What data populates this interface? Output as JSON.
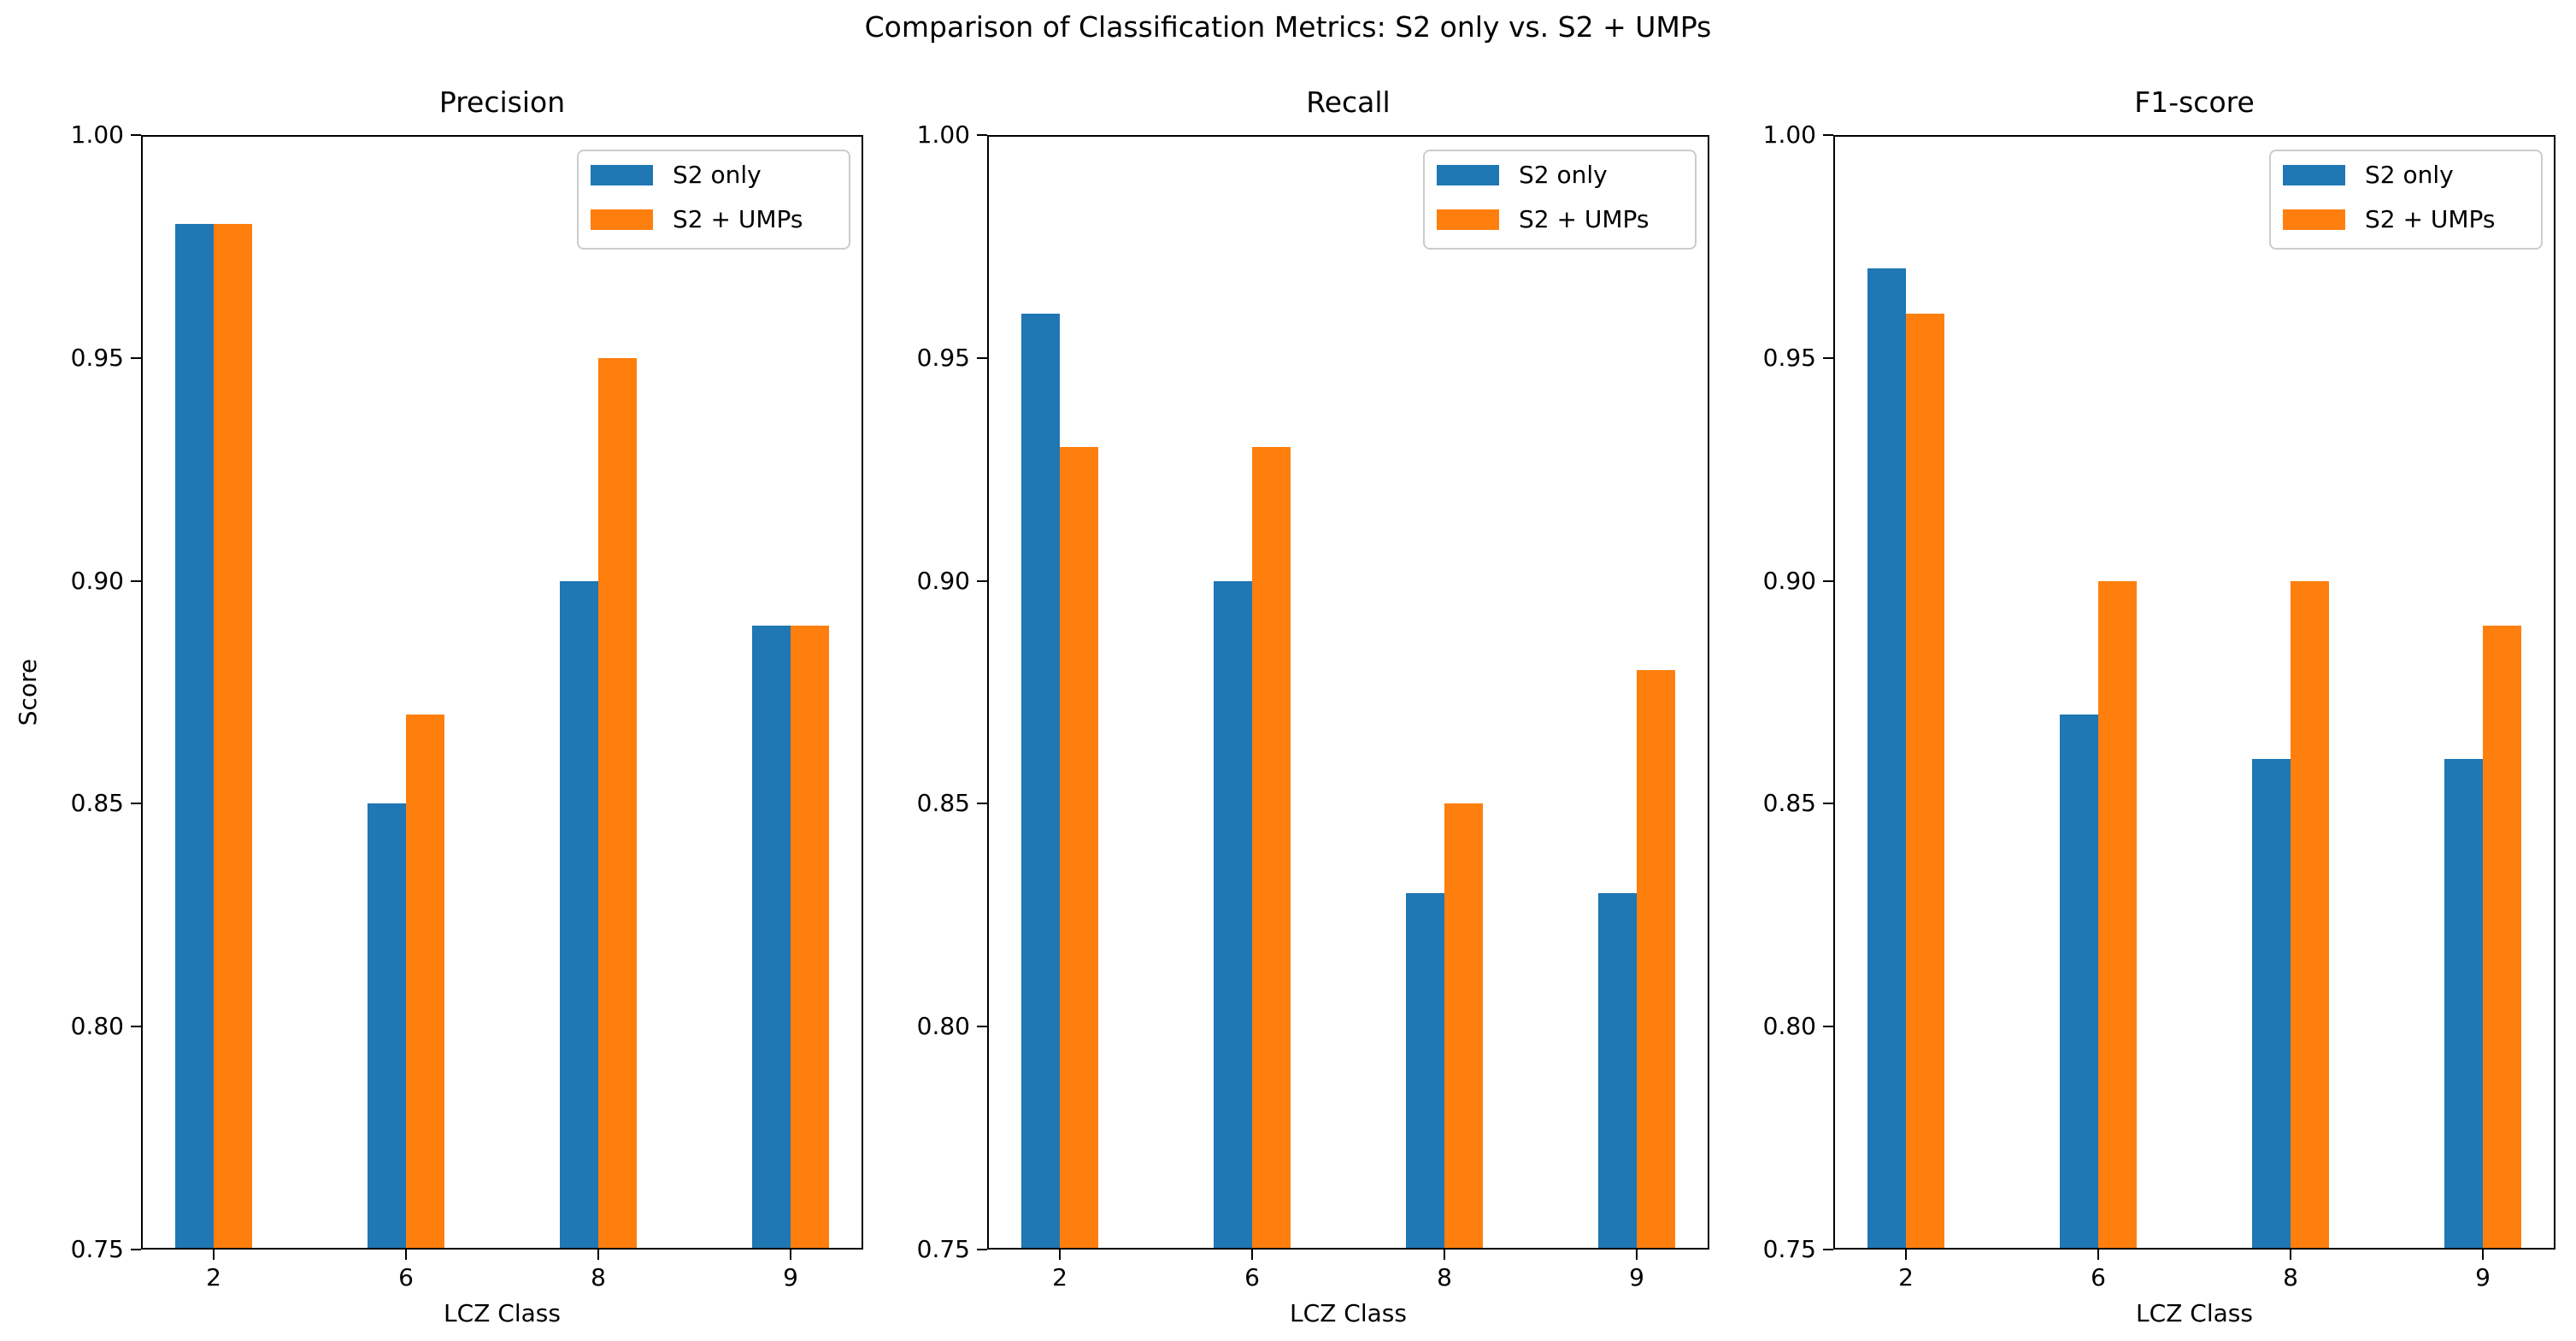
{
  "figure": {
    "suptitle": "Comparison of Classification Metrics: S2 only vs. S2 + UMPs"
  },
  "chart_data": [
    {
      "type": "bar",
      "title": "Precision",
      "xlabel": "LCZ Class",
      "ylabel": "Score",
      "categories": [
        "2",
        "6",
        "8",
        "9"
      ],
      "series": [
        {
          "name": "S2 only",
          "color": "#1f77b4",
          "values": [
            0.98,
            0.85,
            0.9,
            0.89
          ]
        },
        {
          "name": "S2 + UMPs",
          "color": "#ff7f0e",
          "values": [
            0.98,
            0.87,
            0.95,
            0.89
          ]
        }
      ],
      "ylim": [
        0.75,
        1.0
      ],
      "yticks": [
        "1.00",
        "0.95",
        "0.90",
        "0.85",
        "0.80",
        "0.75"
      ],
      "legend_position": "upper right",
      "grid": false
    },
    {
      "type": "bar",
      "title": "Recall",
      "xlabel": "LCZ Class",
      "ylabel": "",
      "categories": [
        "2",
        "6",
        "8",
        "9"
      ],
      "series": [
        {
          "name": "S2 only",
          "color": "#1f77b4",
          "values": [
            0.96,
            0.9,
            0.83,
            0.83
          ]
        },
        {
          "name": "S2 + UMPs",
          "color": "#ff7f0e",
          "values": [
            0.93,
            0.93,
            0.85,
            0.88
          ]
        }
      ],
      "ylim": [
        0.75,
        1.0
      ],
      "yticks": [
        "1.00",
        "0.95",
        "0.90",
        "0.85",
        "0.80",
        "0.75"
      ],
      "legend_position": "upper right",
      "grid": false
    },
    {
      "type": "bar",
      "title": "F1-score",
      "xlabel": "LCZ Class",
      "ylabel": "",
      "categories": [
        "2",
        "6",
        "8",
        "9"
      ],
      "series": [
        {
          "name": "S2 only",
          "color": "#1f77b4",
          "values": [
            0.97,
            0.87,
            0.86,
            0.86
          ]
        },
        {
          "name": "S2 + UMPs",
          "color": "#ff7f0e",
          "values": [
            0.96,
            0.9,
            0.9,
            0.89
          ]
        }
      ],
      "ylim": [
        0.75,
        1.0
      ],
      "yticks": [
        "1.00",
        "0.95",
        "0.90",
        "0.85",
        "0.80",
        "0.75"
      ],
      "legend_position": "upper right",
      "grid": false
    }
  ]
}
